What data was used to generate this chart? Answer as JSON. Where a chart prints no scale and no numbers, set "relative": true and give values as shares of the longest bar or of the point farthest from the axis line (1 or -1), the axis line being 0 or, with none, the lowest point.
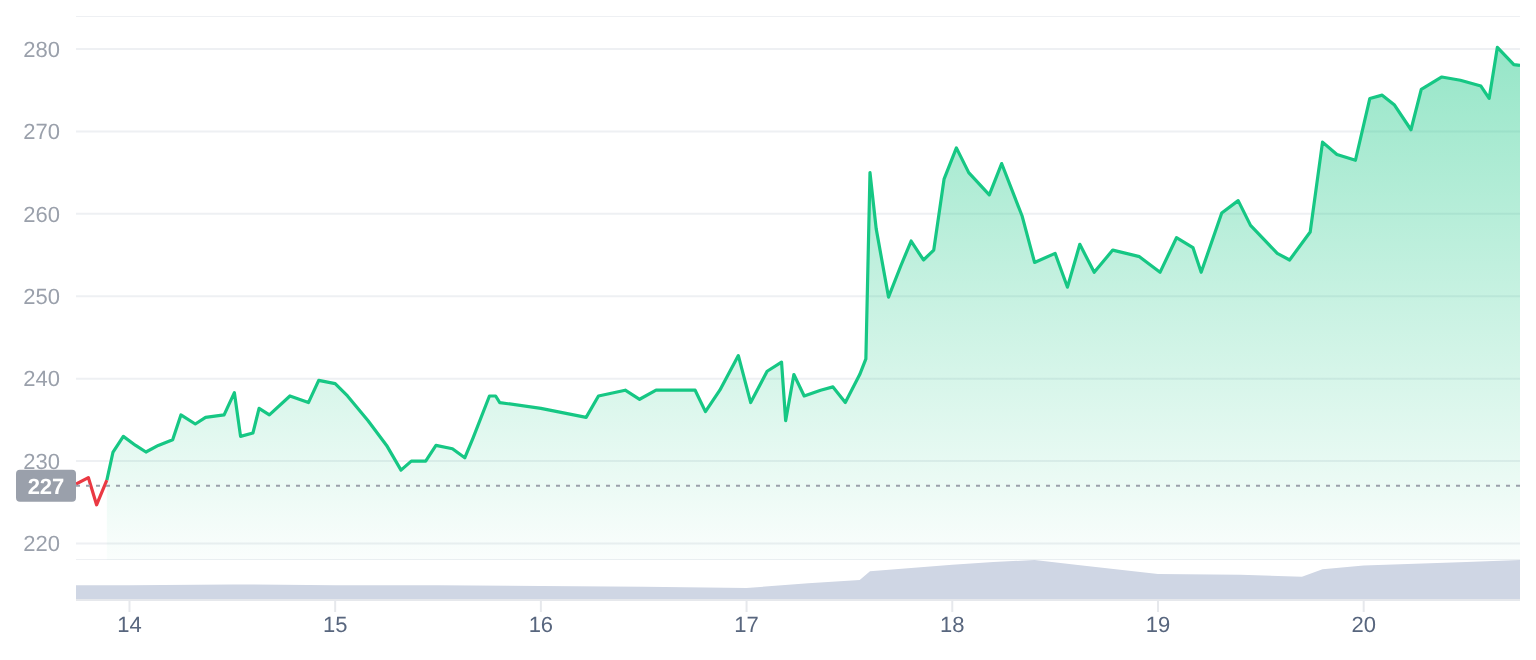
{
  "chart_data": [
    {
      "type": "area",
      "xlim": [
        13.74,
        20.76
      ],
      "ylim": [
        218,
        284
      ],
      "yticks": [
        220,
        230,
        240,
        250,
        260,
        270,
        280
      ],
      "grid": "y",
      "tick_labels": "y",
      "ref_lines": [
        {
          "axis": "y",
          "value": 227,
          "label": "227",
          "color": "#9aa0ab",
          "line_style": "dotted"
        }
      ],
      "series": [
        {
          "type": "line",
          "color": "#ea3943",
          "x": [
            13.74,
            13.8,
            13.84,
            13.89
          ],
          "values": [
            227.2,
            228.0,
            224.7,
            227.7
          ]
        },
        {
          "color": "#16c784",
          "x": [
            13.89,
            13.92,
            13.97,
            14.03,
            14.08,
            14.14,
            14.21,
            14.25,
            14.32,
            14.37,
            14.46,
            14.51,
            14.54,
            14.6,
            14.63,
            14.68,
            14.78,
            14.87,
            14.92,
            15.0,
            15.06,
            15.16,
            15.25,
            15.32,
            15.37,
            15.44,
            15.49,
            15.57,
            15.63,
            15.67,
            15.75,
            15.78,
            15.8,
            16.0,
            16.22,
            16.28,
            16.41,
            16.48,
            16.56,
            16.75,
            16.8,
            16.87,
            16.96,
            17.02,
            17.1,
            17.17,
            17.19,
            17.23,
            17.28,
            17.36,
            17.42,
            17.48,
            17.55,
            17.58,
            17.6,
            17.63,
            17.69,
            17.75,
            17.8,
            17.86,
            17.91,
            17.96,
            18.02,
            18.08,
            18.18,
            18.24,
            18.34,
            18.4,
            18.5,
            18.56,
            18.62,
            18.69,
            18.78,
            18.91,
            19.01,
            19.09,
            19.17,
            19.21,
            19.31,
            19.39,
            19.45,
            19.58,
            19.64,
            19.74,
            19.8,
            19.87,
            19.96,
            20.03,
            20.09,
            20.15,
            20.23,
            20.28,
            20.38,
            20.47,
            20.57,
            20.61,
            20.65,
            20.73,
            20.76
          ],
          "values": [
            227.7,
            231.1,
            233.0,
            231.9,
            231.1,
            231.9,
            232.6,
            235.6,
            234.5,
            235.3,
            235.6,
            238.3,
            233.0,
            233.4,
            236.4,
            235.6,
            237.9,
            237.1,
            239.8,
            239.4,
            237.9,
            234.9,
            231.9,
            228.9,
            230.0,
            230.0,
            231.9,
            231.5,
            230.4,
            232.8,
            237.9,
            237.9,
            237.1,
            236.4,
            235.3,
            237.9,
            238.6,
            237.5,
            238.6,
            238.6,
            236.0,
            238.6,
            242.8,
            237.1,
            240.9,
            242.0,
            234.9,
            240.5,
            237.9,
            238.6,
            239.0,
            237.1,
            240.5,
            242.4,
            265.0,
            258.2,
            249.9,
            253.7,
            256.7,
            254.4,
            255.6,
            264.2,
            268.0,
            265.0,
            262.3,
            266.1,
            259.7,
            254.1,
            255.2,
            251.1,
            256.3,
            252.9,
            255.6,
            254.8,
            252.9,
            257.1,
            255.9,
            252.9,
            260.1,
            261.6,
            258.6,
            255.2,
            254.4,
            257.8,
            268.7,
            267.2,
            266.5,
            274.0,
            274.4,
            273.2,
            270.2,
            275.1,
            276.6,
            276.2,
            275.5,
            274.0,
            280.2,
            278.1,
            278.0
          ]
        }
      ]
    },
    {
      "type": "area",
      "relative": true,
      "color": "#cfd6e4",
      "xlim": [
        13.74,
        20.76
      ],
      "xticks": [
        14,
        15,
        16,
        17,
        18,
        19,
        20
      ],
      "tick_labels": "x",
      "x": [
        13.74,
        14.0,
        14.5,
        15.0,
        15.5,
        16.0,
        16.5,
        17.0,
        17.3,
        17.55,
        17.6,
        18.0,
        18.2,
        18.4,
        18.6,
        19.0,
        19.4,
        19.7,
        19.8,
        20.0,
        20.5,
        20.76
      ],
      "values": [
        0.37,
        0.37,
        0.39,
        0.37,
        0.37,
        0.35,
        0.33,
        0.3,
        0.42,
        0.5,
        0.72,
        0.88,
        0.95,
        1.0,
        0.88,
        0.65,
        0.63,
        0.58,
        0.77,
        0.86,
        0.95,
        1.0
      ]
    }
  ]
}
